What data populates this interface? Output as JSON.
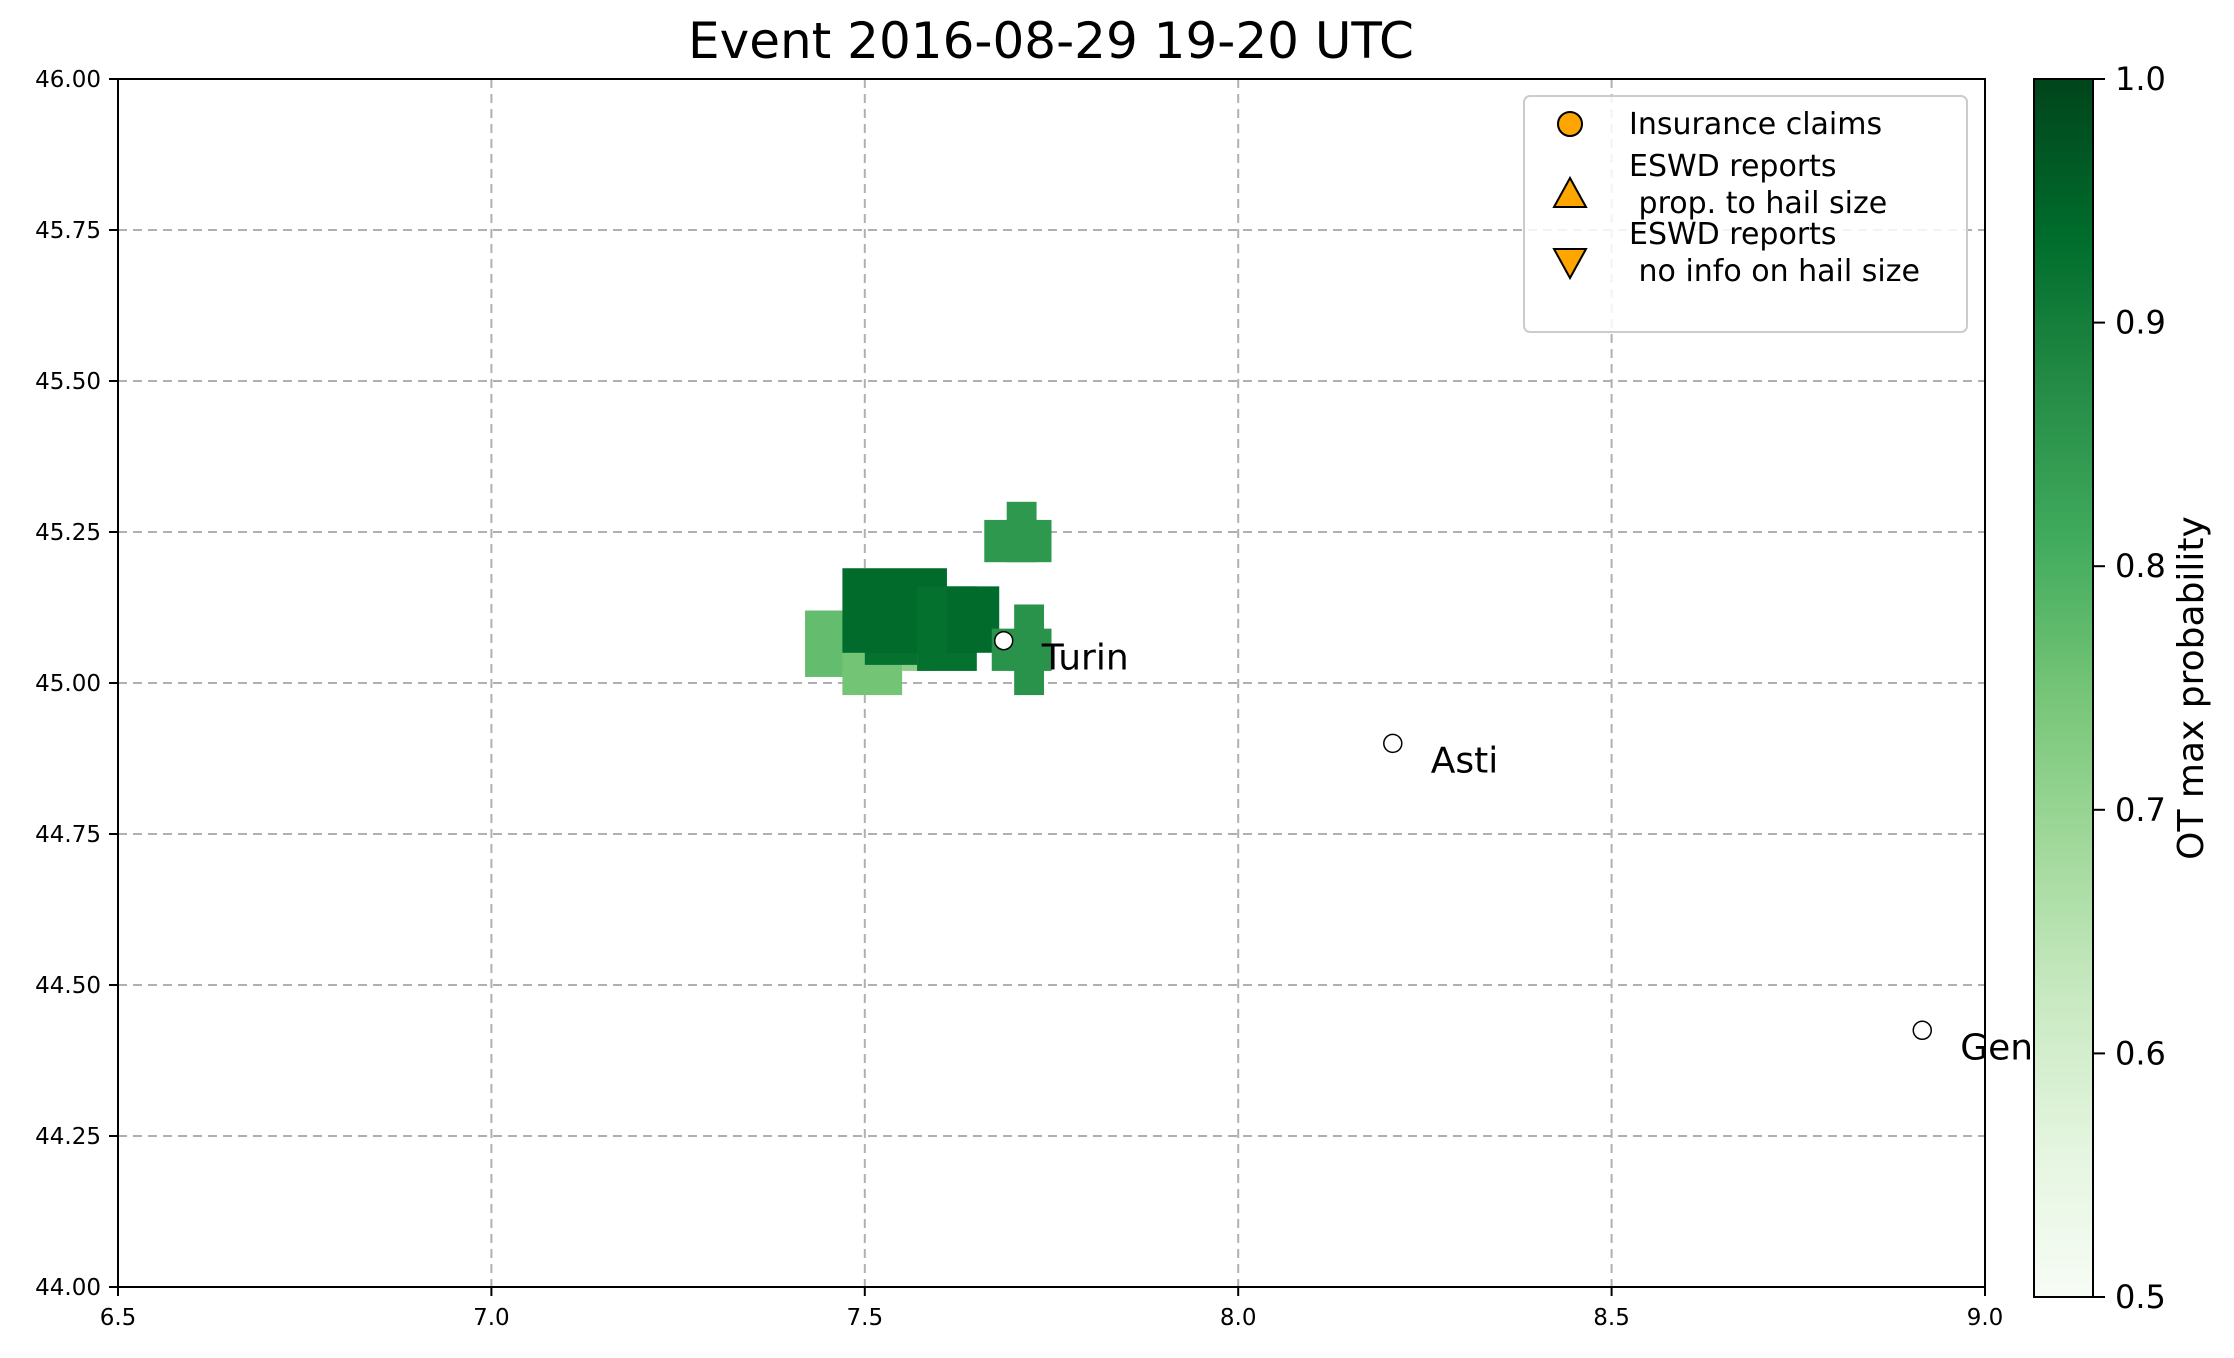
{
  "chart_data": {
    "type": "scatter",
    "title": "Event 2016-08-29 19-20 UTC",
    "xlabel": "",
    "ylabel": "",
    "xlim": [
      6.5,
      9.0
    ],
    "ylim": [
      44.0,
      46.0
    ],
    "xticks": [
      6.5,
      7.0,
      7.5,
      8.0,
      8.5,
      9.0
    ],
    "xtick_labels": [
      "6.5",
      "7.0",
      "7.5",
      "8.0",
      "8.5",
      "9.0"
    ],
    "yticks": [
      44.0,
      44.25,
      44.5,
      44.75,
      45.0,
      45.25,
      45.5,
      45.75,
      46.0
    ],
    "ytick_labels": [
      "44.00",
      "44.25",
      "44.50",
      "44.75",
      "45.00",
      "45.25",
      "45.50",
      "45.75",
      "46.00"
    ],
    "grid": true,
    "legend": {
      "placement": "top-right",
      "entries": [
        {
          "marker": "circle",
          "label_lines": [
            "Insurance claims"
          ]
        },
        {
          "marker": "triangle-up",
          "label_lines": [
            "ESWD reports",
            " prop. to hail size"
          ]
        },
        {
          "marker": "triangle-down",
          "label_lines": [
            "ESWD reports",
            " no info on hail size"
          ]
        }
      ]
    },
    "colorbar": {
      "label": "OT max probability",
      "range": [
        0.5,
        1.0
      ],
      "ticks": [
        0.5,
        0.6,
        0.7,
        0.8,
        0.9,
        1.0
      ],
      "tick_labels": [
        "0.5",
        "0.6",
        "0.7",
        "0.8",
        "0.9",
        "1.0"
      ],
      "colormap": "Greens"
    },
    "cities": [
      {
        "name": "Turin",
        "lon": 7.686,
        "lat": 45.07
      },
      {
        "name": "Asti",
        "lon": 8.207,
        "lat": 44.9
      },
      {
        "name": "Genoa",
        "lon": 8.916,
        "lat": 44.425
      }
    ],
    "probability_cells": [
      {
        "lon": [
          7.42,
          7.5
        ],
        "lat": [
          45.01,
          45.12
        ],
        "p": 0.77
      },
      {
        "lon": [
          7.47,
          7.55
        ],
        "lat": [
          44.98,
          45.05
        ],
        "p": 0.75
      },
      {
        "lon": [
          7.55,
          7.59
        ],
        "lat": [
          45.02,
          45.05
        ],
        "p": 0.72
      },
      {
        "lon": [
          7.5,
          7.57
        ],
        "lat": [
          45.03,
          45.18
        ],
        "p": 0.93
      },
      {
        "lon": [
          7.47,
          7.61
        ],
        "lat": [
          45.05,
          45.19
        ],
        "p": 0.94
      },
      {
        "lon": [
          7.57,
          7.65
        ],
        "lat": [
          45.02,
          45.16
        ],
        "p": 0.93
      },
      {
        "lon": [
          7.61,
          7.68
        ],
        "lat": [
          45.05,
          45.16
        ],
        "p": 0.94
      },
      {
        "lon": [
          7.67,
          7.75
        ],
        "lat": [
          45.02,
          45.09
        ],
        "p": 0.86
      },
      {
        "lon": [
          7.7,
          7.74
        ],
        "lat": [
          44.98,
          45.13
        ],
        "p": 0.86
      },
      {
        "lon": [
          7.66,
          7.75
        ],
        "lat": [
          45.2,
          45.27
        ],
        "p": 0.85
      },
      {
        "lon": [
          7.69,
          7.73
        ],
        "lat": [
          45.2,
          45.3
        ],
        "p": 0.85
      }
    ]
  }
}
